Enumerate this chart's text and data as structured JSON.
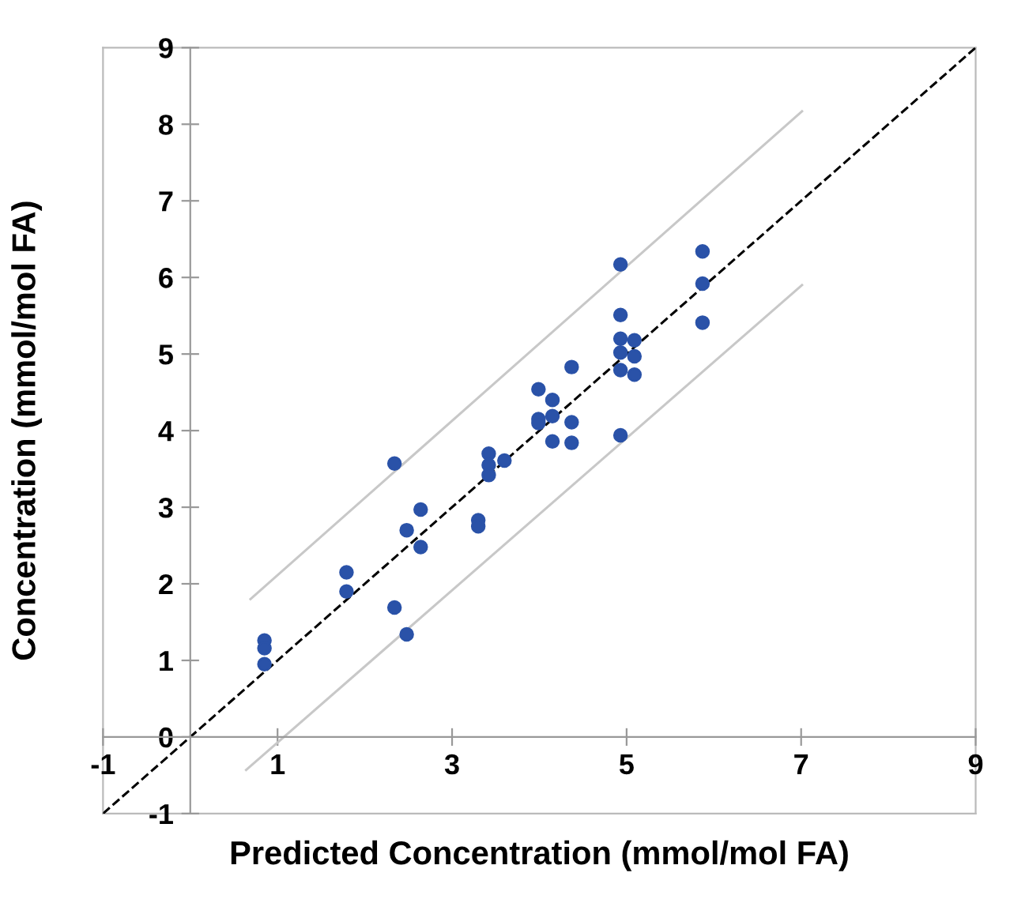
{
  "chart_data": {
    "type": "scatter",
    "xlabel": "Predicted Concentration (mmol/mol FA)",
    "ylabel": "Concentration (mmol/mol FA)",
    "xlim": [
      -1,
      9
    ],
    "ylim": [
      -1,
      9
    ],
    "xticks": [
      -1,
      1,
      3,
      5,
      7,
      9
    ],
    "yticks": [
      -1,
      0,
      1,
      2,
      3,
      4,
      5,
      6,
      7,
      8,
      9
    ],
    "grid": false,
    "series": [
      {
        "marker": "circle",
        "color": "#2a52a8",
        "x": [
          0.85,
          0.85,
          0.85,
          1.79,
          1.79,
          2.34,
          2.34,
          2.48,
          2.48,
          2.64,
          2.64,
          3.3,
          3.3,
          3.42,
          3.42,
          3.42,
          3.6,
          3.99,
          4.15,
          4.15,
          3.99,
          3.99,
          4.37,
          4.37,
          4.15,
          4.37,
          4.93,
          4.93,
          4.93,
          4.93,
          4.93,
          5.09,
          5.09,
          5.09,
          4.93,
          5.87,
          5.87,
          5.87
        ],
        "values": [
          1.26,
          1.16,
          0.95,
          2.15,
          1.9,
          3.57,
          1.69,
          2.7,
          1.34,
          2.97,
          2.48,
          2.83,
          2.75,
          3.7,
          3.55,
          3.42,
          3.61,
          4.54,
          4.4,
          4.19,
          4.15,
          4.1,
          4.83,
          4.11,
          3.86,
          3.84,
          6.17,
          5.51,
          5.2,
          5.02,
          4.79,
          5.18,
          4.97,
          4.73,
          3.94,
          6.34,
          5.92,
          5.41
        ]
      },
      {
        "type": "line",
        "color": "#000000",
        "line_style": "dashed",
        "marker": "none",
        "x": [
          -1,
          9
        ],
        "values": [
          -1,
          9
        ]
      },
      {
        "type": "line",
        "color": "#c8c8c8",
        "line_style": "solid",
        "marker": "none",
        "x": [
          0.69,
          7.01
        ],
        "values": [
          1.8,
          8.17
        ]
      },
      {
        "type": "line",
        "color": "#c8c8c8",
        "line_style": "solid",
        "marker": "none",
        "x": [
          0.64,
          7.01
        ],
        "values": [
          -0.43,
          5.9
        ]
      }
    ]
  }
}
